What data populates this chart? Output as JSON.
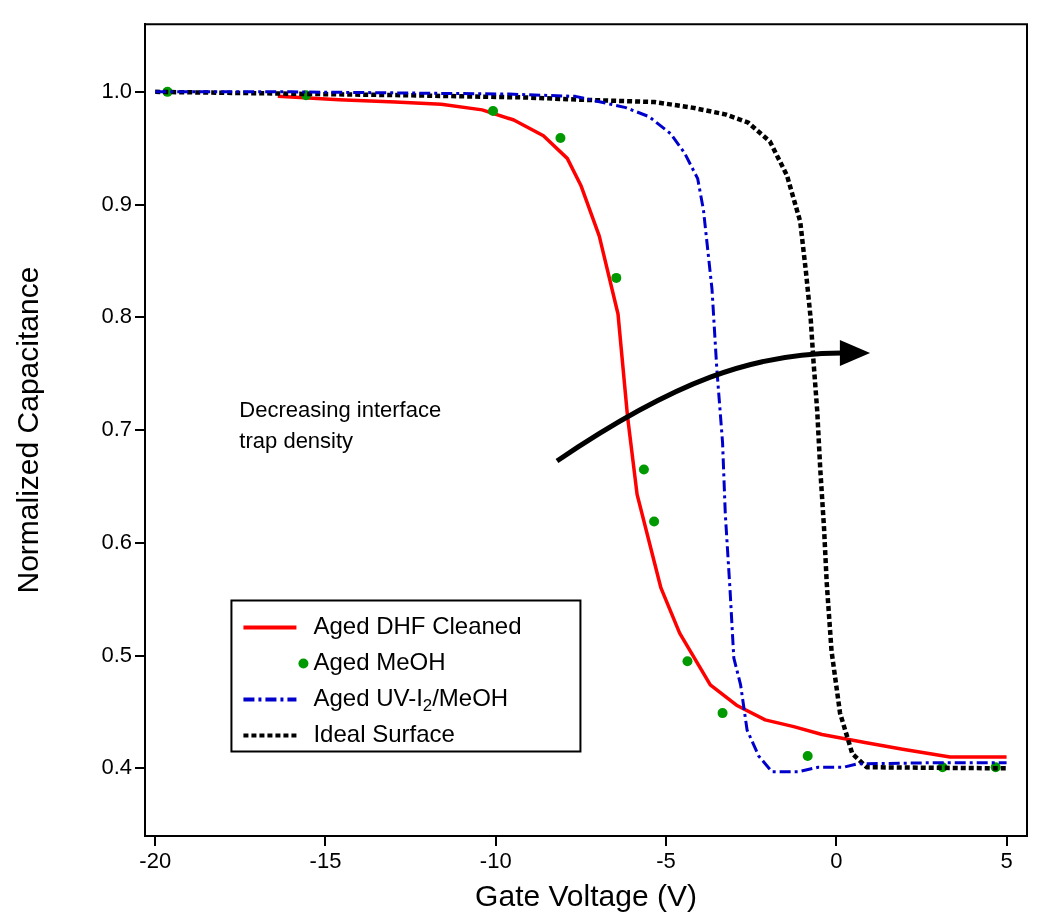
{
  "chart_data": {
    "type": "line",
    "xlabel": "Gate Voltage (V)",
    "ylabel": "Normalized Capacitance",
    "xlim": [
      -20.3,
      5.6
    ],
    "xticks": [
      -20,
      -15,
      -10,
      -5,
      0,
      5
    ],
    "ylim": [
      0.34,
      1.06
    ],
    "yticks": [
      0.4,
      0.5,
      0.6,
      0.7,
      0.8,
      0.9,
      {
        "value": 1.0,
        "label": "1.0"
      }
    ],
    "grid": false,
    "legend": "bottom left",
    "annotations": [
      "Decreasing interface trap density"
    ],
    "series": [
      {
        "name": "Aged DHF Cleaned",
        "type": "line",
        "color": "#ff0000",
        "line_style": "solid",
        "marker": "none",
        "x": [
          -16.4,
          -14.6,
          -12.95,
          -11.6,
          -10.4,
          -9.47,
          -8.6,
          -7.9,
          -7.5,
          -6.96,
          -6.41,
          -6.13,
          -5.85,
          -5.15,
          -4.6,
          -3.7,
          -2.93,
          -2.09,
          -1.25,
          -0.42,
          0.84,
          1.95,
          3.34,
          5.0
        ],
        "values": [
          0.996,
          0.993,
          0.991,
          0.989,
          0.984,
          0.975,
          0.961,
          0.941,
          0.917,
          0.872,
          0.803,
          0.712,
          0.643,
          0.56,
          0.52,
          0.474,
          0.456,
          0.443,
          0.437,
          0.43,
          0.423,
          0.417,
          0.41,
          0.41
        ]
      },
      {
        "name": "Aged MeOH",
        "type": "scatter",
        "color": "#009900",
        "marker": "circle",
        "x": [
          -19.64,
          -15.57,
          -10.08,
          -8.1,
          -6.46,
          -5.65,
          -5.35,
          -4.37,
          -3.34,
          -0.84,
          3.12,
          4.68
        ],
        "values": [
          1.0,
          0.997,
          0.983,
          0.959,
          0.835,
          0.665,
          0.619,
          0.495,
          0.449,
          0.411,
          0.401,
          0.401
        ]
      },
      {
        "name": "Aged UV-I$_{2}$/MeOH",
        "type": "line",
        "color": "#0000cc",
        "line_style": "dashdot",
        "marker": "none",
        "x": [
          -20,
          -16,
          -12.7,
          -9.6,
          -7.66,
          -6.18,
          -5.5,
          -4.87,
          -4.46,
          -4.07,
          -3.9,
          -3.65,
          -3.51,
          -3.34,
          -3.26,
          -3.12,
          -3.01,
          -2.81,
          -2.62,
          -2.28,
          -1.89,
          -1.11,
          -0.53,
          0.22,
          0.61,
          2.95,
          5.0
        ],
        "values": [
          1.0,
          1.0,
          0.999,
          0.998,
          0.996,
          0.986,
          0.978,
          0.963,
          0.946,
          0.923,
          0.895,
          0.825,
          0.755,
          0.689,
          0.626,
          0.558,
          0.498,
          0.474,
          0.434,
          0.411,
          0.397,
          0.397,
          0.401,
          0.401,
          0.404,
          0.405,
          0.405
        ]
      },
      {
        "name": "Ideal Surface",
        "type": "line",
        "color": "#000000",
        "line_style": "dashed",
        "marker": "none",
        "x": [
          -20,
          -12.7,
          -9.1,
          -7.5,
          -5.35,
          -4.23,
          -3.26,
          -2.6,
          -1.95,
          -1.45,
          -1.06,
          -0.89,
          -0.75,
          -0.67,
          -0.56,
          -0.47,
          -0.36,
          -0.28,
          -0.14,
          0.11,
          0.47,
          0.89,
          5.0
        ],
        "values": [
          1.0,
          0.997,
          0.995,
          0.993,
          0.991,
          0.986,
          0.98,
          0.973,
          0.956,
          0.926,
          0.885,
          0.84,
          0.798,
          0.761,
          0.717,
          0.665,
          0.613,
          0.564,
          0.504,
          0.449,
          0.413,
          0.401,
          0.4
        ]
      }
    ]
  }
}
